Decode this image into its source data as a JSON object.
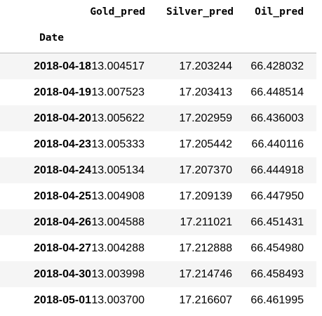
{
  "dataframe": {
    "columns": [
      "Gold_pred",
      "Silver_pred",
      "Oil_pred"
    ],
    "index_name": "Date",
    "rows": [
      {
        "date": "2018-04-18",
        "gold": "13.004517",
        "silver": "17.203244",
        "oil": "66.428032"
      },
      {
        "date": "2018-04-19",
        "gold": "13.007523",
        "silver": "17.203413",
        "oil": "66.448514"
      },
      {
        "date": "2018-04-20",
        "gold": "13.005622",
        "silver": "17.202959",
        "oil": "66.436003"
      },
      {
        "date": "2018-04-23",
        "gold": "13.005333",
        "silver": "17.205442",
        "oil": "66.440116"
      },
      {
        "date": "2018-04-24",
        "gold": "13.005134",
        "silver": "17.207370",
        "oil": "66.444918"
      },
      {
        "date": "2018-04-25",
        "gold": "13.004908",
        "silver": "17.209139",
        "oil": "66.447950"
      },
      {
        "date": "2018-04-26",
        "gold": "13.004588",
        "silver": "17.211021",
        "oil": "66.451431"
      },
      {
        "date": "2018-04-27",
        "gold": "13.004288",
        "silver": "17.212888",
        "oil": "66.454980"
      },
      {
        "date": "2018-04-30",
        "gold": "13.003998",
        "silver": "17.214746",
        "oil": "66.458493"
      },
      {
        "date": "2018-05-01",
        "gold": "13.003700",
        "silver": "17.216607",
        "oil": "66.461995"
      }
    ]
  },
  "colors": {
    "stripe": "#f5f5f5",
    "border": "#bdbdbd"
  }
}
